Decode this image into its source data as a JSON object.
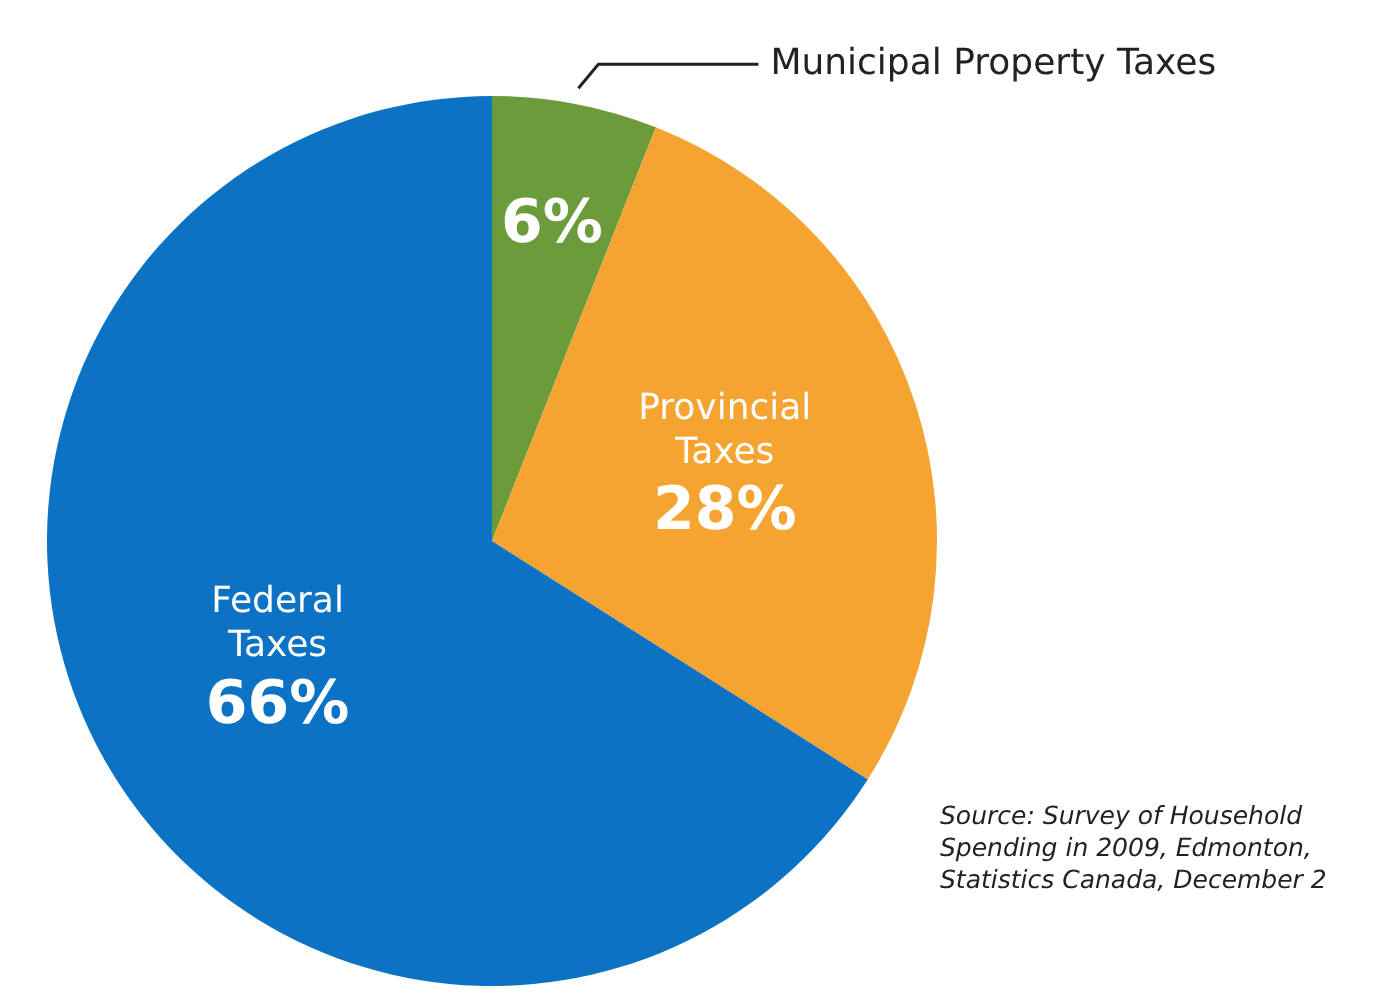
{
  "chart_data": {
    "type": "pie",
    "categories": [
      "Municipal Property Taxes",
      "Provincial Taxes",
      "Federal Taxes"
    ],
    "values": [
      6,
      28,
      66
    ],
    "colors": [
      "#6b9b3a",
      "#f5a431",
      "#0b72c4"
    ],
    "value_labels": [
      "6%",
      "28%",
      "66%"
    ],
    "legend": false,
    "annotations": [
      "Source: Survey of Household Spending in 2009, Edmonton, Statistics Canada, December 2"
    ]
  }
}
